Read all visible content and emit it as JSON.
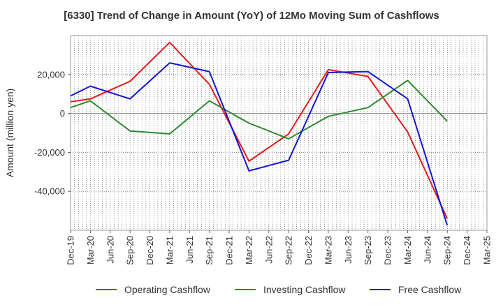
{
  "chart_data": {
    "type": "line",
    "title": "[6330]  Trend of Change in Amount (YoY) of 12Mo Moving Sum of Cashflows",
    "ylabel": "Amount (million yen)",
    "xlabel": "",
    "ylim": [
      -60000,
      40000
    ],
    "yticks": [
      -40000,
      -20000,
      0,
      20000
    ],
    "ytick_labels": [
      "-40,000",
      "-20,000",
      "0",
      "20,000"
    ],
    "categories": [
      "Dec-19",
      "Mar-20",
      "Jun-20",
      "Sep-20",
      "Dec-20",
      "Mar-21",
      "Jun-21",
      "Sep-21",
      "Dec-21",
      "Mar-22",
      "Jun-22",
      "Sep-22",
      "Dec-22",
      "Mar-23",
      "Jun-23",
      "Sep-23",
      "Dec-23",
      "Mar-24",
      "Jun-24",
      "Sep-24",
      "Dec-24",
      "Mar-25"
    ],
    "legend_position": "bottom",
    "series": [
      {
        "name": "Operating Cashflow",
        "color": "#e31a1c",
        "values": [
          6000,
          7500,
          null,
          16500,
          null,
          36500,
          null,
          15000,
          null,
          -24500,
          null,
          -10500,
          null,
          22500,
          null,
          19000,
          null,
          -9500,
          null,
          -54000,
          null,
          null
        ]
      },
      {
        "name": "Investing Cashflow",
        "color": "#2e8b2e",
        "values": [
          3000,
          6500,
          null,
          -9000,
          null,
          -10500,
          null,
          6500,
          null,
          -5000,
          null,
          -13000,
          null,
          -1500,
          null,
          3000,
          null,
          17000,
          null,
          -4000,
          null,
          null
        ]
      },
      {
        "name": "Free Cashflow",
        "color": "#1515cc",
        "values": [
          9000,
          14000,
          null,
          7500,
          null,
          26000,
          null,
          21500,
          null,
          -29500,
          null,
          -24000,
          null,
          21000,
          null,
          21500,
          null,
          7500,
          null,
          -57500,
          null,
          null
        ]
      }
    ]
  }
}
